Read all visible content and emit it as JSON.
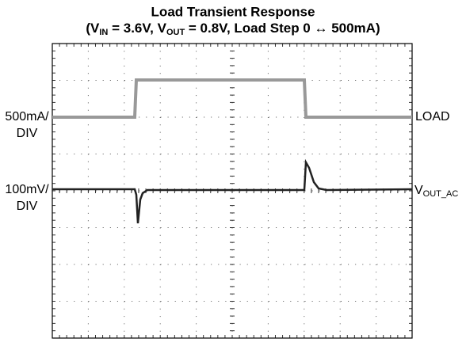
{
  "title": "Load Transient Response",
  "subtitle": [
    "(V",
    "IN",
    " = 3.6V, V",
    "OUT",
    " = 0.8V, Load Step 0 ↔ 500mA)"
  ],
  "left_labels": [
    [
      "500mA/",
      "DIV"
    ],
    [
      "100mV/",
      "DIV"
    ]
  ],
  "right_labels": {
    "load": "LOAD",
    "vout": [
      "V",
      "OUT_AC"
    ]
  }
}
